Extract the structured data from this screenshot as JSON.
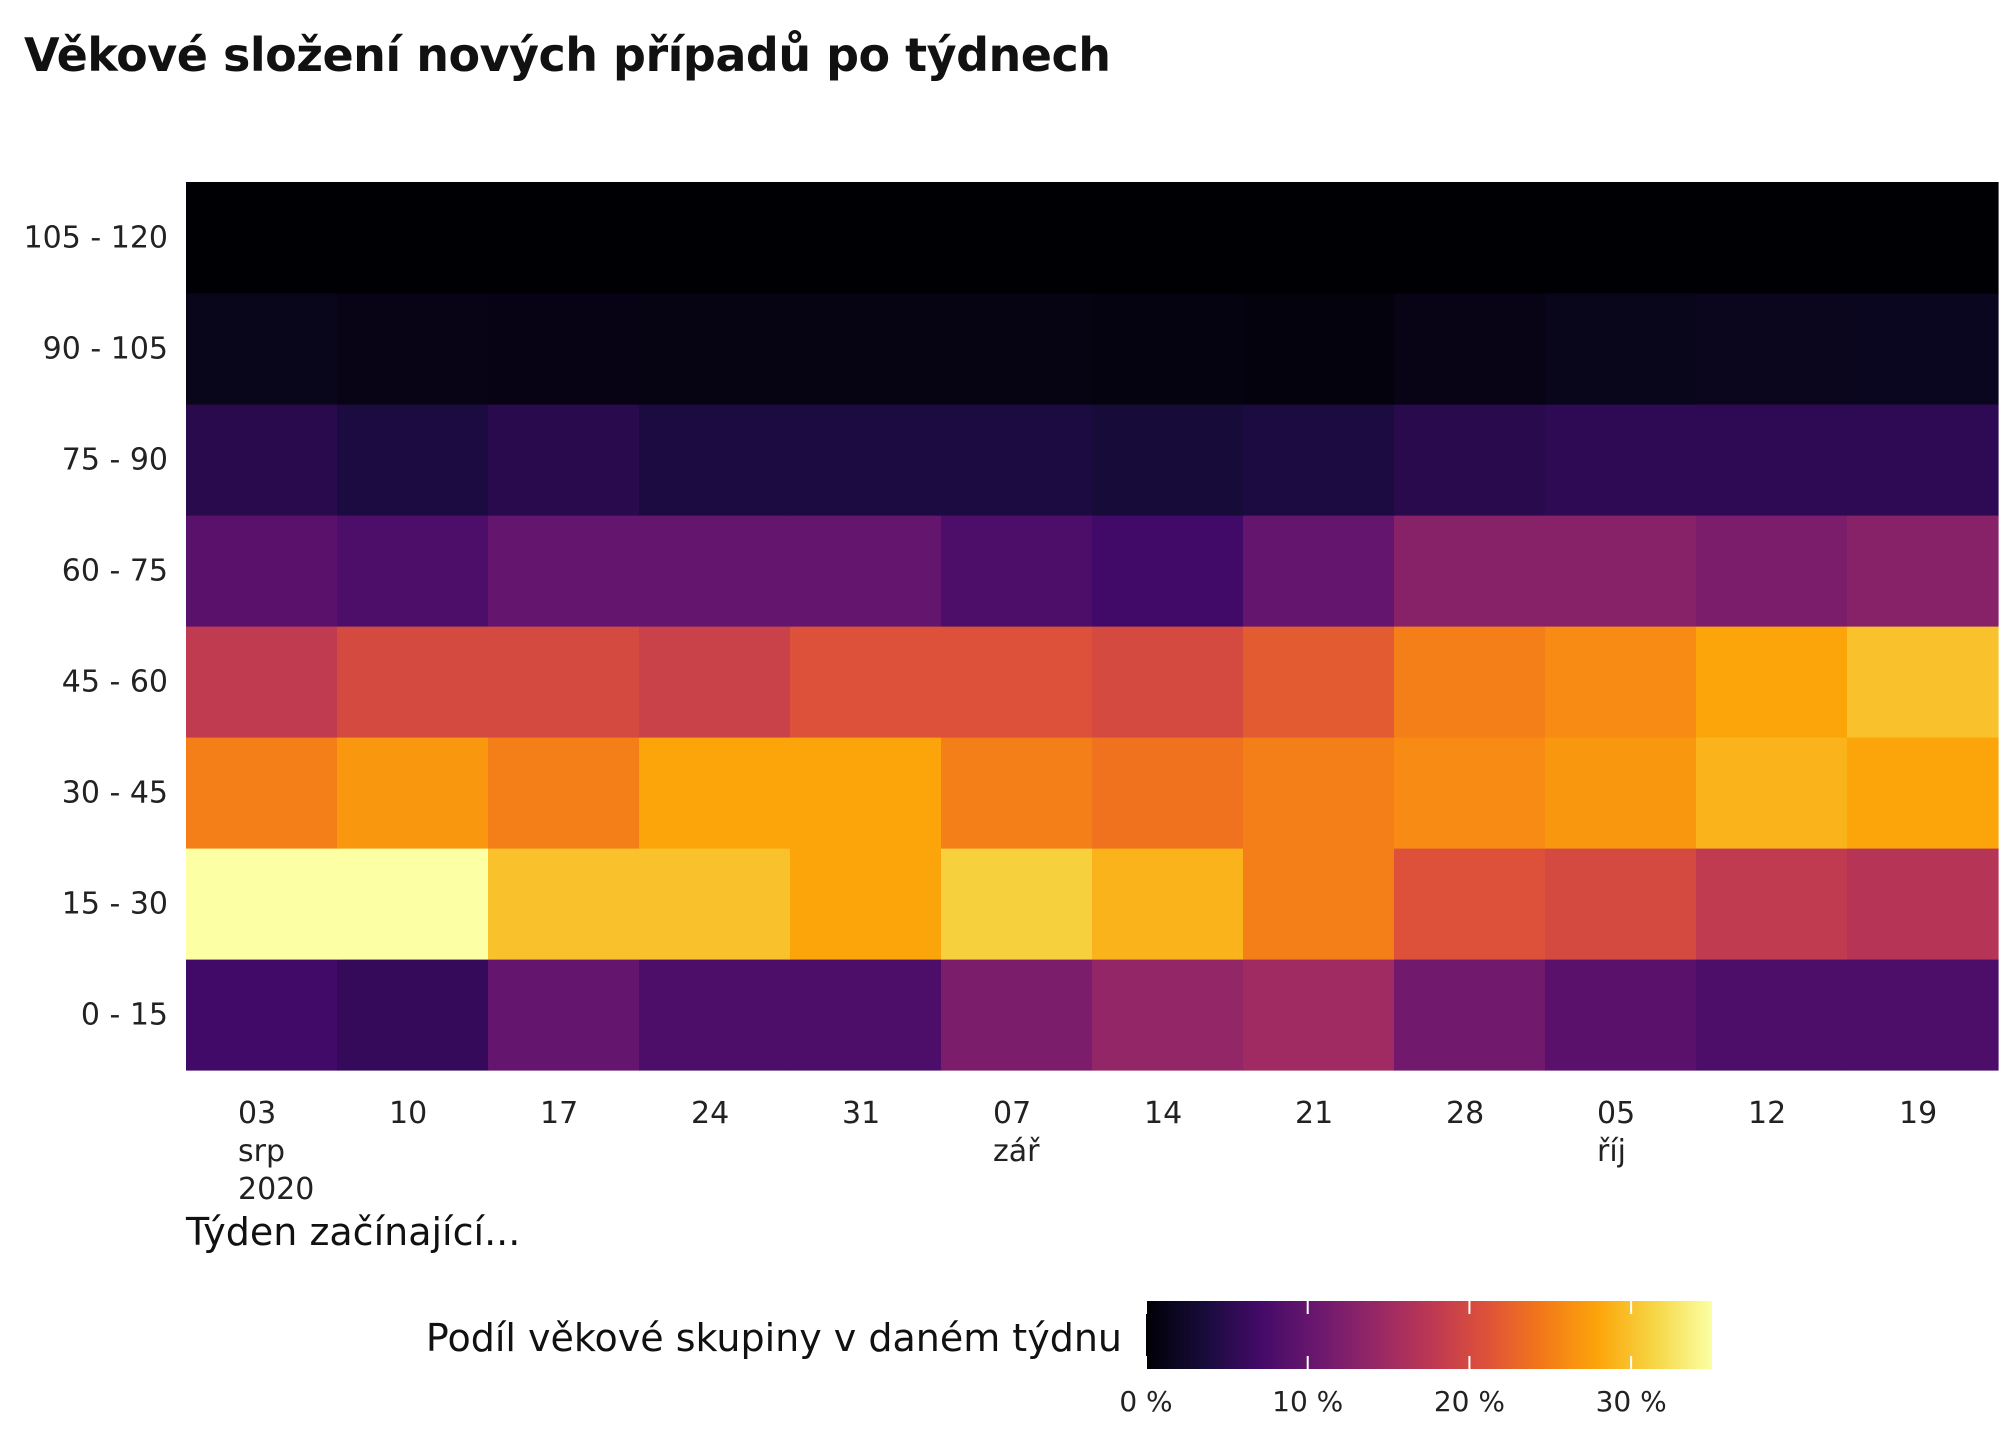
{
  "chart_data": {
    "type": "heatmap",
    "title": "Věkové složení nových případů po týdnech",
    "xlabel": "Týden začínající...",
    "ylabel": "",
    "x_ticks": [
      [
        "03",
        "srp",
        "2020"
      ],
      [
        "10"
      ],
      [
        "17"
      ],
      [
        "24"
      ],
      [
        "31"
      ],
      [
        "07",
        "zář"
      ],
      [
        "14"
      ],
      [
        "21"
      ],
      [
        "28"
      ],
      [
        "05",
        "říj"
      ],
      [
        "12"
      ],
      [
        "19"
      ]
    ],
    "y_categories": [
      "0 - 15",
      "15 - 30",
      "30 - 45",
      "45 - 60",
      "60 - 75",
      "75 - 90",
      "90 - 105",
      "105 - 120"
    ],
    "values_percent": [
      [
        7,
        6,
        10,
        8,
        8,
        12,
        14,
        15,
        11,
        9,
        8,
        8
      ],
      [
        36,
        35,
        30,
        30,
        28,
        31,
        29,
        25,
        21,
        20,
        18,
        17
      ],
      [
        25,
        27,
        25,
        28,
        28,
        25,
        24,
        25,
        26,
        27,
        29,
        28
      ],
      [
        18,
        20,
        20,
        19,
        21,
        21,
        20,
        22,
        25,
        26,
        28,
        30
      ],
      [
        9,
        8,
        10,
        10,
        10,
        8,
        7,
        10,
        13,
        13,
        12,
        13
      ],
      [
        5,
        4,
        5,
        4,
        4,
        4,
        3.5,
        4,
        5,
        5.5,
        5.5,
        5.5
      ],
      [
        1.5,
        1.2,
        1.1,
        1,
        1,
        0.9,
        0.8,
        0.6,
        1.2,
        1.5,
        1.7,
        1.8
      ],
      [
        0,
        0,
        0,
        0,
        0,
        0,
        0,
        0,
        0,
        0,
        0,
        0
      ]
    ],
    "colorscale": "inferno",
    "color_range": [
      0,
      35
    ],
    "legend": {
      "title": "Podíl věkové skupiny v daném týdnu",
      "ticks": [
        0,
        10,
        20,
        30
      ],
      "tick_labels": [
        "0 %",
        "10 %",
        "20 %",
        "30 %"
      ],
      "placement": "bottom"
    },
    "grid": false
  }
}
